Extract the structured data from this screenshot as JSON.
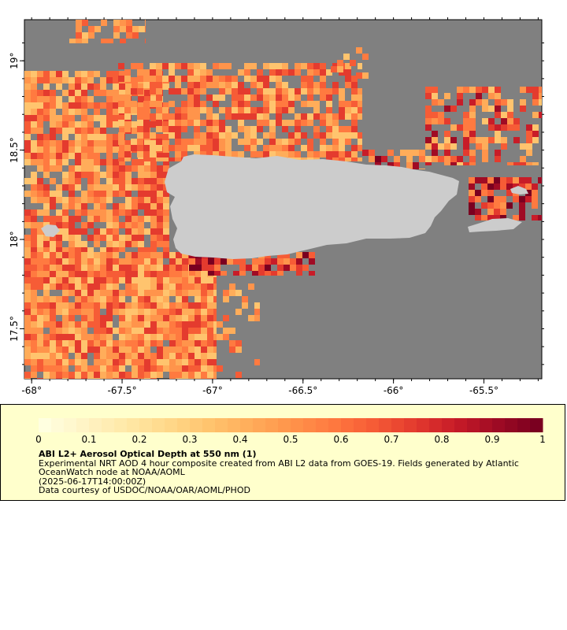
{
  "map": {
    "background_color": "#808080",
    "land_color": "#cccccc",
    "lon_ticks": [
      {
        "value": -68,
        "label": "-68°"
      },
      {
        "value": -67.5,
        "label": "-67.5°"
      },
      {
        "value": -67,
        "label": "-67°"
      },
      {
        "value": -66.5,
        "label": "-66.5°"
      },
      {
        "value": -66,
        "label": "-66°"
      },
      {
        "value": -65.5,
        "label": "-65.5°"
      }
    ],
    "lat_ticks": [
      {
        "value": 19,
        "label": "19°"
      },
      {
        "value": 18.5,
        "label": "18.5°"
      },
      {
        "value": 18,
        "label": "18°"
      },
      {
        "value": 17.5,
        "label": "17.5°"
      }
    ],
    "lon_range": [
      -68.04,
      -65.18
    ],
    "lat_range": [
      17.22,
      19.23
    ]
  },
  "legend": {
    "colorbar_ticks": [
      "0",
      "0.1",
      "0.2",
      "0.3",
      "0.4",
      "0.5",
      "0.6",
      "0.7",
      "0.8",
      "0.9",
      "1"
    ],
    "colorbar_range": [
      0,
      1
    ],
    "title": "ABI L2+ Aerosol Optical Depth at 550 nm (1)",
    "description": "Experimental NRT AOD 4 hour composite created from ABI L2 data from GOES-19. Fields generated by Atlantic OceanWatch node at NOAA/AOML",
    "date": "(2025-06-17T14:00:00Z)",
    "credit": "Data courtesy of USDOC/NOAA/OAR/AOML/PHOD",
    "colors": [
      "#ffffe0",
      "#fff3c4",
      "#ffe8a6",
      "#ffd98a",
      "#ffc46e",
      "#ffad5a",
      "#ff944b",
      "#ff7a40",
      "#f65c36",
      "#e43b2e",
      "#c81c28",
      "#a00b24",
      "#7a0020"
    ]
  }
}
